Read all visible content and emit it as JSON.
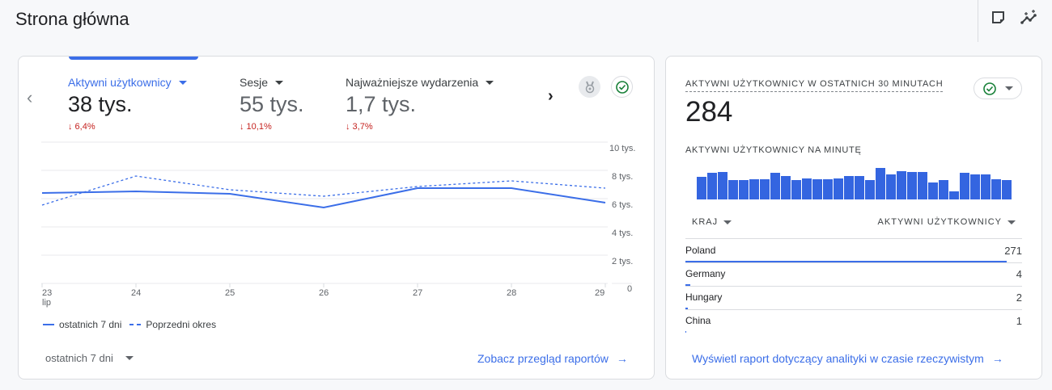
{
  "header": {
    "title": "Strona główna",
    "icons": [
      "sticky-note-icon",
      "insights-icon"
    ]
  },
  "overview_card": {
    "metrics": [
      {
        "label": "Aktywni użytkownicy",
        "value": "38 tys.",
        "delta": "↓ 6,4%",
        "active": true
      },
      {
        "label": "Sesje",
        "value": "55 tys.",
        "delta": "↓ 10,1%",
        "active": false
      },
      {
        "label": "Najważniejsze wydarzenia",
        "value": "1,7 tys.",
        "delta": "↓ 3,7%",
        "active": false
      }
    ],
    "legend": {
      "current": "ostatnich 7 dni",
      "previous": "Poprzedni okres"
    },
    "period_select": "ostatnich 7 dni",
    "link": "Zobacz przegląd raportów"
  },
  "chart_data": {
    "type": "line",
    "title": "Aktywni użytkownicy",
    "x": [
      "23",
      "24",
      "25",
      "26",
      "27",
      "28",
      "29"
    ],
    "x_sublabel": "lip",
    "yticks": [
      "0",
      "2 tys.",
      "4 tys.",
      "6 tys.",
      "8 tys.",
      "10 tys."
    ],
    "ylim": [
      0,
      10000
    ],
    "series": [
      {
        "name": "ostatnich 7 dni",
        "style": "solid",
        "values": [
          6400,
          6500,
          6300,
          5200,
          6600,
          6600,
          5600
        ]
      },
      {
        "name": "Poprzedni okres",
        "style": "dashed",
        "values": [
          5600,
          7700,
          6600,
          6100,
          6900,
          7200,
          6700
        ]
      }
    ],
    "grid": true,
    "legend_position": "bottom-left"
  },
  "realtime_card": {
    "title": "AKTYWNI UŻYTKOWNICY W OSTATNICH 30 MINUTACH",
    "value": "284",
    "per_minute_label": "AKTYWNI UŻYTKOWNICY NA MINUTĘ",
    "per_minute_bars": [
      27,
      32,
      33,
      23,
      23,
      24,
      24,
      32,
      28,
      23,
      25,
      24,
      24,
      25,
      28,
      28,
      23,
      38,
      30,
      34,
      33,
      33,
      20,
      23,
      10,
      32,
      30,
      30,
      24,
      23
    ],
    "table": {
      "col_country": "KRAJ",
      "col_users": "AKTYWNI UŻYTKOWNICY",
      "rows": [
        {
          "country": "Poland",
          "users": "271"
        },
        {
          "country": "Germany",
          "users": "4"
        },
        {
          "country": "Hungary",
          "users": "2"
        },
        {
          "country": "China",
          "users": "1"
        }
      ]
    },
    "link": "Wyświetl raport dotyczący analityki w czasie rzeczywistym"
  }
}
